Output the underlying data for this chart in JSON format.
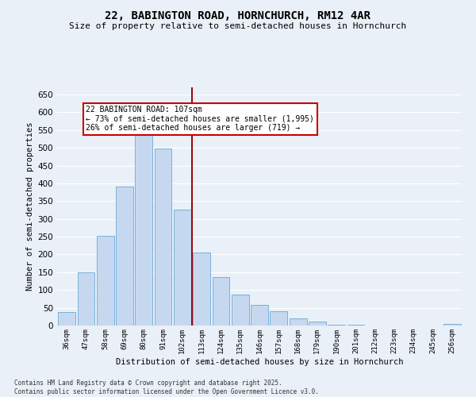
{
  "title": "22, BABINGTON ROAD, HORNCHURCH, RM12 4AR",
  "subtitle": "Size of property relative to semi-detached houses in Hornchurch",
  "xlabel": "Distribution of semi-detached houses by size in Hornchurch",
  "ylabel": "Number of semi-detached properties",
  "bar_labels": [
    "36sqm",
    "47sqm",
    "58sqm",
    "69sqm",
    "80sqm",
    "91sqm",
    "102sqm",
    "113sqm",
    "124sqm",
    "135sqm",
    "146sqm",
    "157sqm",
    "168sqm",
    "179sqm",
    "190sqm",
    "201sqm",
    "212sqm",
    "223sqm",
    "234sqm",
    "245sqm",
    "256sqm"
  ],
  "bar_values": [
    38,
    150,
    252,
    390,
    535,
    498,
    325,
    205,
    137,
    88,
    57,
    40,
    20,
    12,
    3,
    2,
    1,
    0,
    0,
    0,
    5
  ],
  "bar_color": "#c5d8f0",
  "bar_edge_color": "#6aaad4",
  "vline_x_idx": 6.5,
  "vline_color": "#990000",
  "annotation_text": "22 BABINGTON ROAD: 107sqm\n← 73% of semi-detached houses are smaller (1,995)\n26% of semi-detached houses are larger (719) →",
  "annotation_box_color": "#ffffff",
  "annotation_box_edge": "#cc0000",
  "ylim": [
    0,
    670
  ],
  "yticks": [
    0,
    50,
    100,
    150,
    200,
    250,
    300,
    350,
    400,
    450,
    500,
    550,
    600,
    650
  ],
  "bg_color": "#eaf0f8",
  "grid_color": "#ffffff",
  "title_fontsize": 10,
  "subtitle_fontsize": 8,
  "footer_text": "Contains HM Land Registry data © Crown copyright and database right 2025.\nContains public sector information licensed under the Open Government Licence v3.0."
}
